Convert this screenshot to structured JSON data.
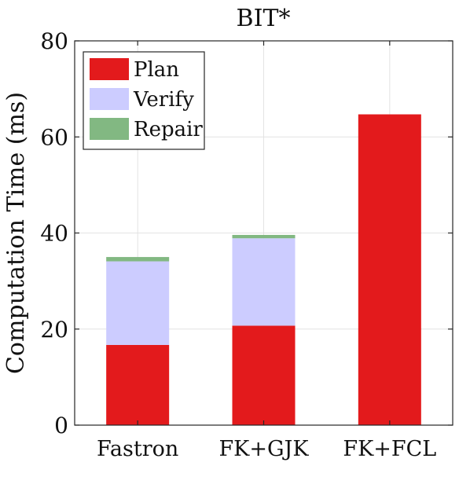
{
  "chart_data": {
    "type": "bar",
    "stacked": true,
    "title": "BIT*",
    "xlabel": "",
    "ylabel": "Computation Time (ms)",
    "ylim": [
      0,
      80
    ],
    "yticks": [
      0,
      20,
      40,
      60,
      80
    ],
    "grid": true,
    "legend_position": "top-left",
    "categories": [
      "Fastron",
      "FK+GJK",
      "FK+FCL"
    ],
    "series": [
      {
        "name": "Plan",
        "color": "#e31a1c",
        "values": [
          16.7,
          20.7,
          64.7
        ]
      },
      {
        "name": "Verify",
        "color": "#ccccff",
        "values": [
          17.4,
          18.2,
          0
        ]
      },
      {
        "name": "Repair",
        "color": "#82b882",
        "values": [
          0.9,
          0.7,
          0
        ]
      }
    ]
  }
}
